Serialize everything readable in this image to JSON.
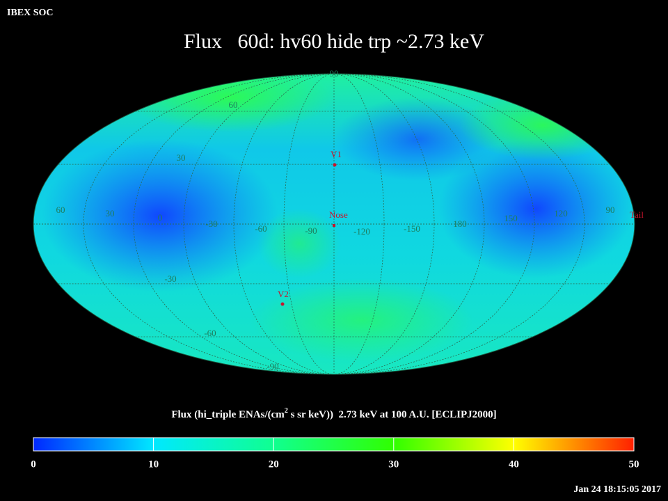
{
  "header": {
    "source": "IBEX SOC",
    "title": "Flux   60d: hv60 hide trp ~2.73 keV"
  },
  "map": {
    "grid_labels": [
      "90",
      "60",
      "30",
      "60",
      "30",
      "0",
      "-30",
      "-60",
      "-90",
      "-120",
      "-150",
      "180",
      "150",
      "120",
      "90",
      "-30",
      "-60",
      "-90"
    ],
    "markers": [
      "V1",
      "Nose",
      "V2",
      "Tail"
    ]
  },
  "colorbar": {
    "title": "Flux (hi_triple ENAs/(cm",
    "title_sup": "2",
    "title_rest": " s sr keV))  2.73 keV at 100 A.U. [ECLIPJ2000]",
    "range": [
      0,
      50
    ],
    "ticks": [
      0,
      10,
      20,
      30,
      40,
      50
    ]
  },
  "timestamp": "Jan 24 18:15:05 2017"
}
